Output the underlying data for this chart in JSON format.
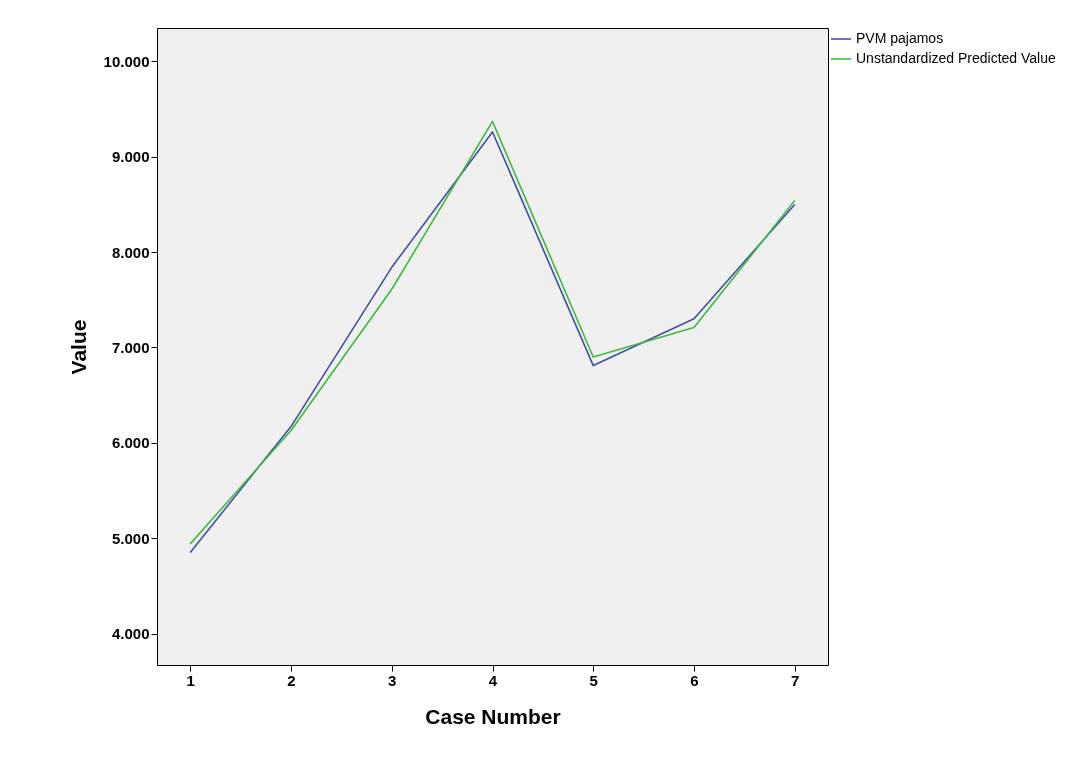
{
  "chart_data": {
    "type": "line",
    "xlabel": "Case Number",
    "ylabel": "Value",
    "x": [
      1,
      2,
      3,
      4,
      5,
      6,
      7
    ],
    "series": [
      {
        "name": "PVM pajamos",
        "color": "#3f51a3",
        "values": [
          4.85,
          6.17,
          7.84,
          9.26,
          6.81,
          7.3,
          8.5
        ]
      },
      {
        "name": "Unstandardized Predicted Value",
        "color": "#3dba3d",
        "values": [
          4.94,
          6.13,
          7.61,
          9.37,
          6.9,
          7.21,
          8.54
        ]
      }
    ],
    "xlim": [
      0.67,
      7.33
    ],
    "xticks": [
      1,
      2,
      3,
      4,
      5,
      6,
      7
    ],
    "ylim": [
      3.67,
      10.35
    ],
    "yticks": [
      {
        "value": 4,
        "label": "4.000"
      },
      {
        "value": 5,
        "label": "5.000"
      },
      {
        "value": 6,
        "label": "6.000"
      },
      {
        "value": 7,
        "label": "7.000"
      },
      {
        "value": 8,
        "label": "8.000"
      },
      {
        "value": 9,
        "label": "9.000"
      },
      {
        "value": 10,
        "label": "10.000"
      }
    ],
    "grid": false,
    "legend": "top right",
    "marker": "none",
    "line_style": "solid"
  }
}
